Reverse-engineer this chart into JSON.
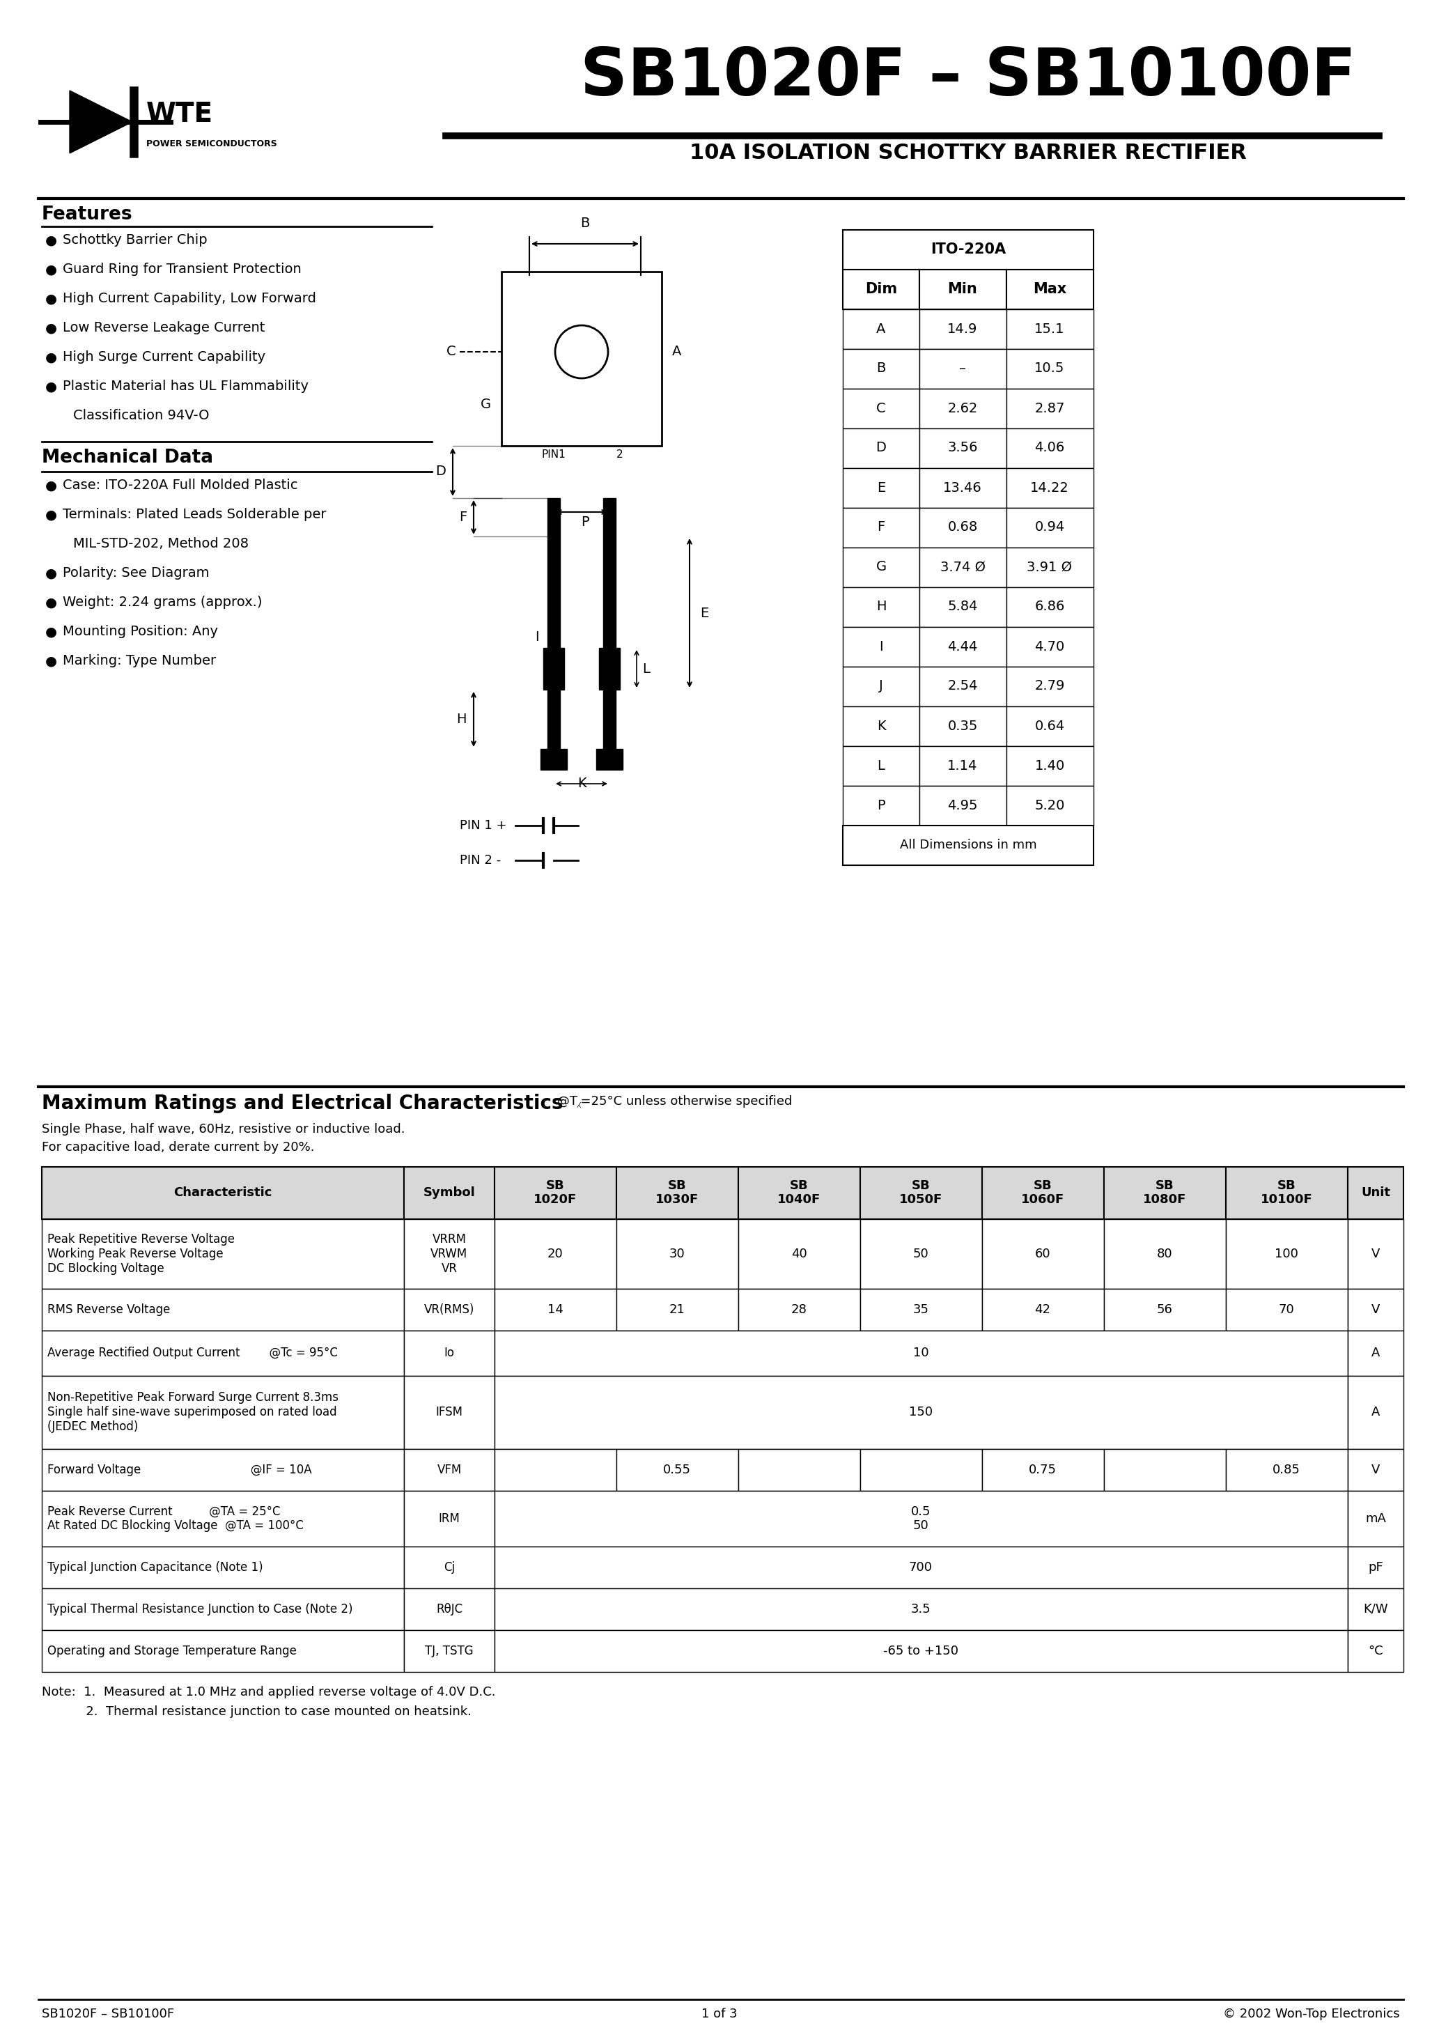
{
  "title": "SB1020F – SB10100F",
  "subtitle": "10A ISOLATION SCHOTTKY BARRIER RECTIFIER",
  "features_title": "Features",
  "feat_items": [
    "Schottky Barrier Chip",
    "Guard Ring for Transient Protection",
    "High Current Capability, Low Forward",
    "Low Reverse Leakage Current",
    "High Surge Current Capability",
    "Plastic Material has UL Flammability",
    "Classification 94V-O"
  ],
  "mech_title": "Mechanical Data",
  "mech_items": [
    "Case: ITO-220A Full Molded Plastic",
    "Terminals: Plated Leads Solderable per",
    "MIL-STD-202, Method 208",
    "Polarity: See Diagram",
    "Weight: 2.24 grams (approx.)",
    "Mounting Position: Any",
    "Marking: Type Number"
  ],
  "dim_table_title": "ITO-220A",
  "dim_headers": [
    "Dim",
    "Min",
    "Max"
  ],
  "dim_rows": [
    [
      "A",
      "14.9",
      "15.1"
    ],
    [
      "B",
      "–",
      "10.5"
    ],
    [
      "C",
      "2.62",
      "2.87"
    ],
    [
      "D",
      "3.56",
      "4.06"
    ],
    [
      "E",
      "13.46",
      "14.22"
    ],
    [
      "F",
      "0.68",
      "0.94"
    ],
    [
      "G",
      "3.74 Ø",
      "3.91 Ø"
    ],
    [
      "H",
      "5.84",
      "6.86"
    ],
    [
      "I",
      "4.44",
      "4.70"
    ],
    [
      "J",
      "2.54",
      "2.79"
    ],
    [
      "K",
      "0.35",
      "0.64"
    ],
    [
      "L",
      "1.14",
      "1.40"
    ],
    [
      "P",
      "4.95",
      "5.20"
    ]
  ],
  "dim_footer": "All Dimensions in mm",
  "ratings_title": "Maximum Ratings and Electrical Characteristics",
  "ratings_subtitle": "@T⁁=25°C unless otherwise specified",
  "ratings_note1": "Single Phase, half wave, 60Hz, resistive or inductive load.",
  "ratings_note2": "For capacitive load, derate current by 20%.",
  "tbl_char": "Characteristic",
  "tbl_sym": "Symbol",
  "tbl_units": [
    "SB\n1020F",
    "SB\n1030F",
    "SB\n1040F",
    "SB\n1050F",
    "SB\n1060F",
    "SB\n1080F",
    "SB\n10100F"
  ],
  "tbl_unit_hdr": "Unit",
  "rows": [
    {
      "char": "Peak Repetitive Reverse Voltage\nWorking Peak Reverse Voltage\nDC Blocking Voltage",
      "sym": "VRRM\nVRWM\nVR",
      "vals": [
        "20",
        "30",
        "40",
        "50",
        "60",
        "80",
        "100"
      ],
      "unit": "V",
      "span": false
    },
    {
      "char": "RMS Reverse Voltage",
      "sym": "VR(RMS)",
      "vals": [
        "14",
        "21",
        "28",
        "35",
        "42",
        "56",
        "70"
      ],
      "unit": "V",
      "span": false
    },
    {
      "char": "Average Rectified Output Current        @Tc = 95°C",
      "sym": "Io",
      "vals": [
        "10"
      ],
      "unit": "A",
      "span": true
    },
    {
      "char": "Non-Repetitive Peak Forward Surge Current 8.3ms\nSingle half sine-wave superimposed on rated load\n(JEDEC Method)",
      "sym": "IFSM",
      "vals": [
        "150"
      ],
      "unit": "A",
      "span": true
    },
    {
      "char": "Forward Voltage                              @IF = 10A",
      "sym": "VFM",
      "vals": [
        "",
        "0.55",
        "",
        "",
        "0.75",
        "",
        "0.85"
      ],
      "unit": "V",
      "span": false
    },
    {
      "char": "Peak Reverse Current          @TA = 25°C\nAt Rated DC Blocking Voltage  @TA = 100°C",
      "sym": "IRM",
      "vals": [
        "0.5\n50"
      ],
      "unit": "mA",
      "span": true
    },
    {
      "char": "Typical Junction Capacitance (Note 1)",
      "sym": "Cj",
      "vals": [
        "700"
      ],
      "unit": "pF",
      "span": true
    },
    {
      "char": "Typical Thermal Resistance Junction to Case (Note 2)",
      "sym": "RθJC",
      "vals": [
        "3.5"
      ],
      "unit": "K/W",
      "span": true
    },
    {
      "char": "Operating and Storage Temperature Range",
      "sym": "TJ, TSTG",
      "vals": [
        "-65 to +150"
      ],
      "unit": "°C",
      "span": true
    }
  ],
  "note1": "Note:  1.  Measured at 1.0 MHz and applied reverse voltage of 4.0V D.C.",
  "note2": "           2.  Thermal resistance junction to case mounted on heatsink.",
  "footer_left": "SB1020F – SB10100F",
  "footer_center": "1 of 3",
  "footer_right": "© 2002 Won-Top Electronics"
}
